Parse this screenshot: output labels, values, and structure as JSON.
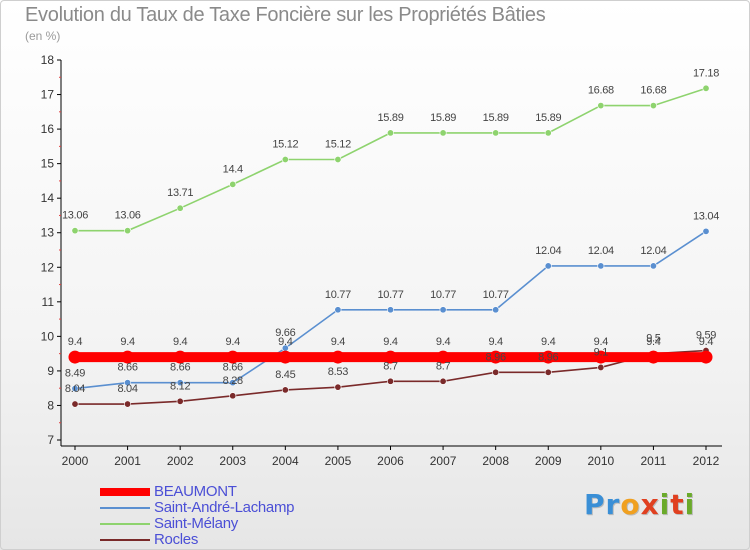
{
  "title": "Evolution du Taux de Taxe Foncière sur les Propriétés Bâties",
  "subtitle": "(en %)",
  "logo": {
    "text": "Proxiti",
    "letters": [
      "P",
      "r",
      "o",
      "x",
      "i",
      "t",
      "i"
    ],
    "colors": [
      "#3a8fd6",
      "#3a8fd6",
      "#f0a020",
      "#e04020",
      "#6aaa2a",
      "#e04020",
      "#6aaa2a"
    ]
  },
  "chart_data": {
    "type": "line",
    "x": [
      "2000",
      "2001",
      "2002",
      "2003",
      "2004",
      "2005",
      "2006",
      "2007",
      "2008",
      "2009",
      "2010",
      "2011",
      "2012"
    ],
    "ylim": [
      7,
      18
    ],
    "yticks": [
      "7",
      "8",
      "9",
      "10",
      "11",
      "12",
      "13",
      "14",
      "15",
      "16",
      "17",
      "18"
    ],
    "grid": false,
    "legend": "bottom-left",
    "series": [
      {
        "name": "BEAUMONT",
        "color": "#ff0000",
        "values": [
          9.4,
          9.4,
          9.4,
          9.4,
          9.4,
          9.4,
          9.4,
          9.4,
          9.4,
          9.4,
          9.4,
          9.4,
          9.4
        ],
        "labels": [
          "9.4",
          "9.4",
          "9.4",
          "9.4",
          "9.4",
          "9.4",
          "9.4",
          "9.4",
          "9.4",
          "9.4",
          "9.4",
          "9.4",
          "9.4"
        ]
      },
      {
        "name": "Saint-André-Lachamp",
        "color": "#5a8fd0",
        "values": [
          8.49,
          8.66,
          8.66,
          8.66,
          9.66,
          10.77,
          10.77,
          10.77,
          10.77,
          12.04,
          12.04,
          12.04,
          13.04
        ],
        "labels": [
          "8.49",
          "8.66",
          "8.66",
          "8.66",
          "9.66",
          "10.77",
          "10.77",
          "10.77",
          "10.77",
          "12.04",
          "12.04",
          "12.04",
          "13.04"
        ]
      },
      {
        "name": "Saint-Mélany",
        "color": "#8ed36e",
        "values": [
          13.06,
          13.06,
          13.71,
          14.4,
          15.12,
          15.12,
          15.89,
          15.89,
          15.89,
          15.89,
          16.68,
          16.68,
          17.18
        ],
        "labels": [
          "13.06",
          "13.06",
          "13.71",
          "14.4",
          "15.12",
          "15.12",
          "15.89",
          "15.89",
          "15.89",
          "15.89",
          "16.68",
          "16.68",
          "17.18"
        ]
      },
      {
        "name": "Rocles",
        "color": "#7a2a2a",
        "values": [
          8.04,
          8.04,
          8.12,
          8.28,
          8.45,
          8.53,
          8.7,
          8.7,
          8.96,
          8.96,
          9.1,
          9.5,
          9.59
        ],
        "labels": [
          "8.04",
          "8.04",
          "8.12",
          "8.28",
          "8.45",
          "8.53",
          "8.7",
          "8.7",
          "8.96",
          "8.96",
          "9.1",
          "9.5",
          "9.59"
        ]
      }
    ]
  }
}
